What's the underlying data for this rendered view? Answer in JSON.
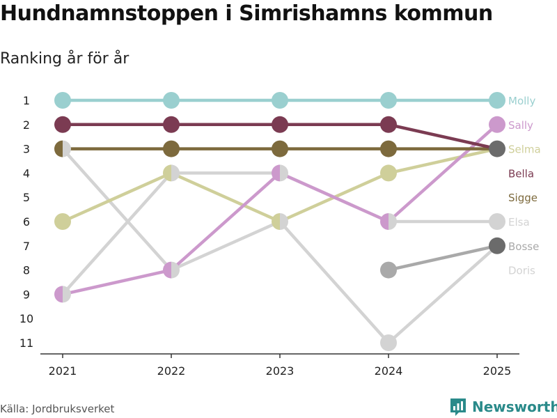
{
  "header": {
    "title": "Hundnamnstoppen i Simrishamns kommun",
    "subtitle": "Ranking år för år"
  },
  "footer": {
    "source": "Källa: Jordbruksverket",
    "brand": "Newsworthy"
  },
  "chart_data": {
    "type": "line",
    "subtype": "bump",
    "title": "Hundnamnstoppen i Simrishamns kommun",
    "subtitle": "Ranking år för år",
    "x": [
      "2021",
      "2022",
      "2023",
      "2024",
      "2025"
    ],
    "y_ticks": [
      "1",
      "2",
      "3",
      "4",
      "5",
      "6",
      "7",
      "8",
      "9",
      "10",
      "11"
    ],
    "ylim": [
      1,
      11
    ],
    "y_inverted": true,
    "grid": false,
    "series": [
      {
        "name": "Doris",
        "color": "#d3d3d3",
        "values": [
          3,
          8,
          6,
          11,
          7
        ]
      },
      {
        "name": "Elsa",
        "color": "#d3d3d3",
        "values": [
          9,
          4,
          4,
          6,
          6
        ]
      },
      {
        "name": "Bosse",
        "color": "#a9a9a9",
        "values": [
          null,
          null,
          null,
          8,
          7
        ]
      },
      {
        "name": "Selma",
        "color": "#cfcf9a",
        "values": [
          6,
          4,
          6,
          4,
          3
        ]
      },
      {
        "name": "Sally",
        "color": "#cc99cc",
        "values": [
          9,
          8,
          4,
          6,
          2
        ]
      },
      {
        "name": "Sigge",
        "color": "#7d6a3d",
        "values": [
          3,
          3,
          3,
          3,
          3
        ]
      },
      {
        "name": "Bella",
        "color": "#7b3b52",
        "values": [
          2,
          2,
          2,
          2,
          3
        ]
      },
      {
        "name": "Molly",
        "color": "#9acfcf",
        "values": [
          1,
          1,
          1,
          1,
          1
        ]
      }
    ],
    "end_labels": [
      {
        "name": "Molly",
        "rank": 1
      },
      {
        "name": "Sally",
        "rank": 2
      },
      {
        "name": "Selma",
        "rank": 3
      },
      {
        "name": "Bella",
        "rank": 4
      },
      {
        "name": "Sigge",
        "rank": 5
      },
      {
        "name": "Elsa",
        "rank": 6
      },
      {
        "name": "Bosse",
        "rank": 7
      },
      {
        "name": "Doris",
        "rank": 8
      }
    ],
    "end_marker_color": "#6b6b6b"
  }
}
